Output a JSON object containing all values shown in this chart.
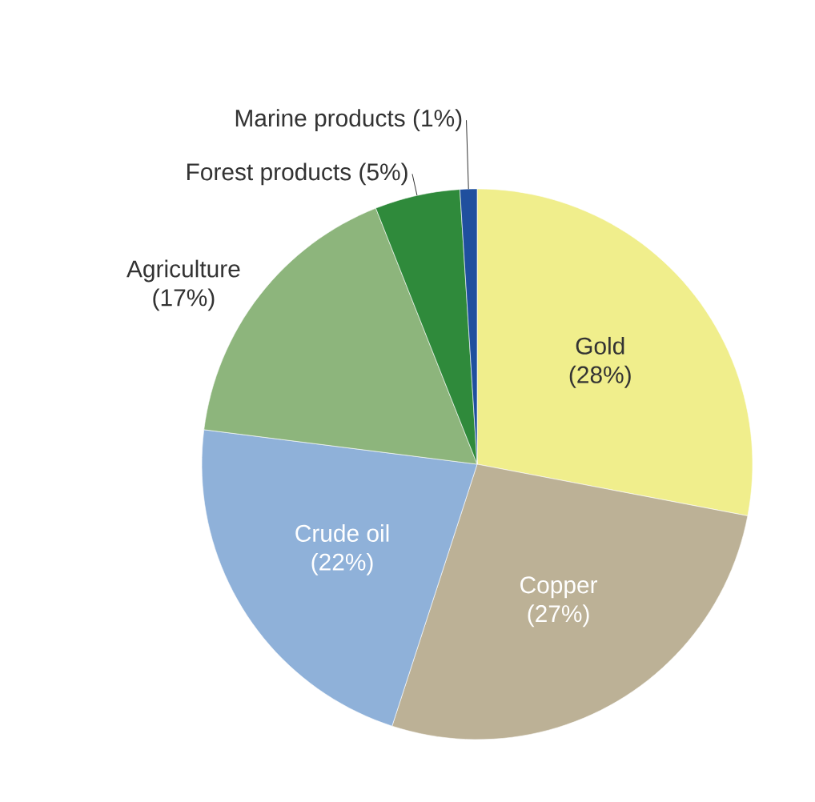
{
  "chart_data": {
    "type": "pie",
    "categories": [
      "Gold",
      "Copper",
      "Crude oil",
      "Agriculture",
      "Forest products",
      "Marine products"
    ],
    "values": [
      28,
      27,
      22,
      17,
      5,
      1
    ],
    "colors": [
      "#f0ee8c",
      "#bcb196",
      "#8fb1d9",
      "#8db57c",
      "#2f8a3b",
      "#1f4f9e"
    ],
    "value_labels": [
      "(28%)",
      "(27%)",
      "(22%)",
      "(17%)",
      "(5%)",
      "(1%)"
    ]
  }
}
